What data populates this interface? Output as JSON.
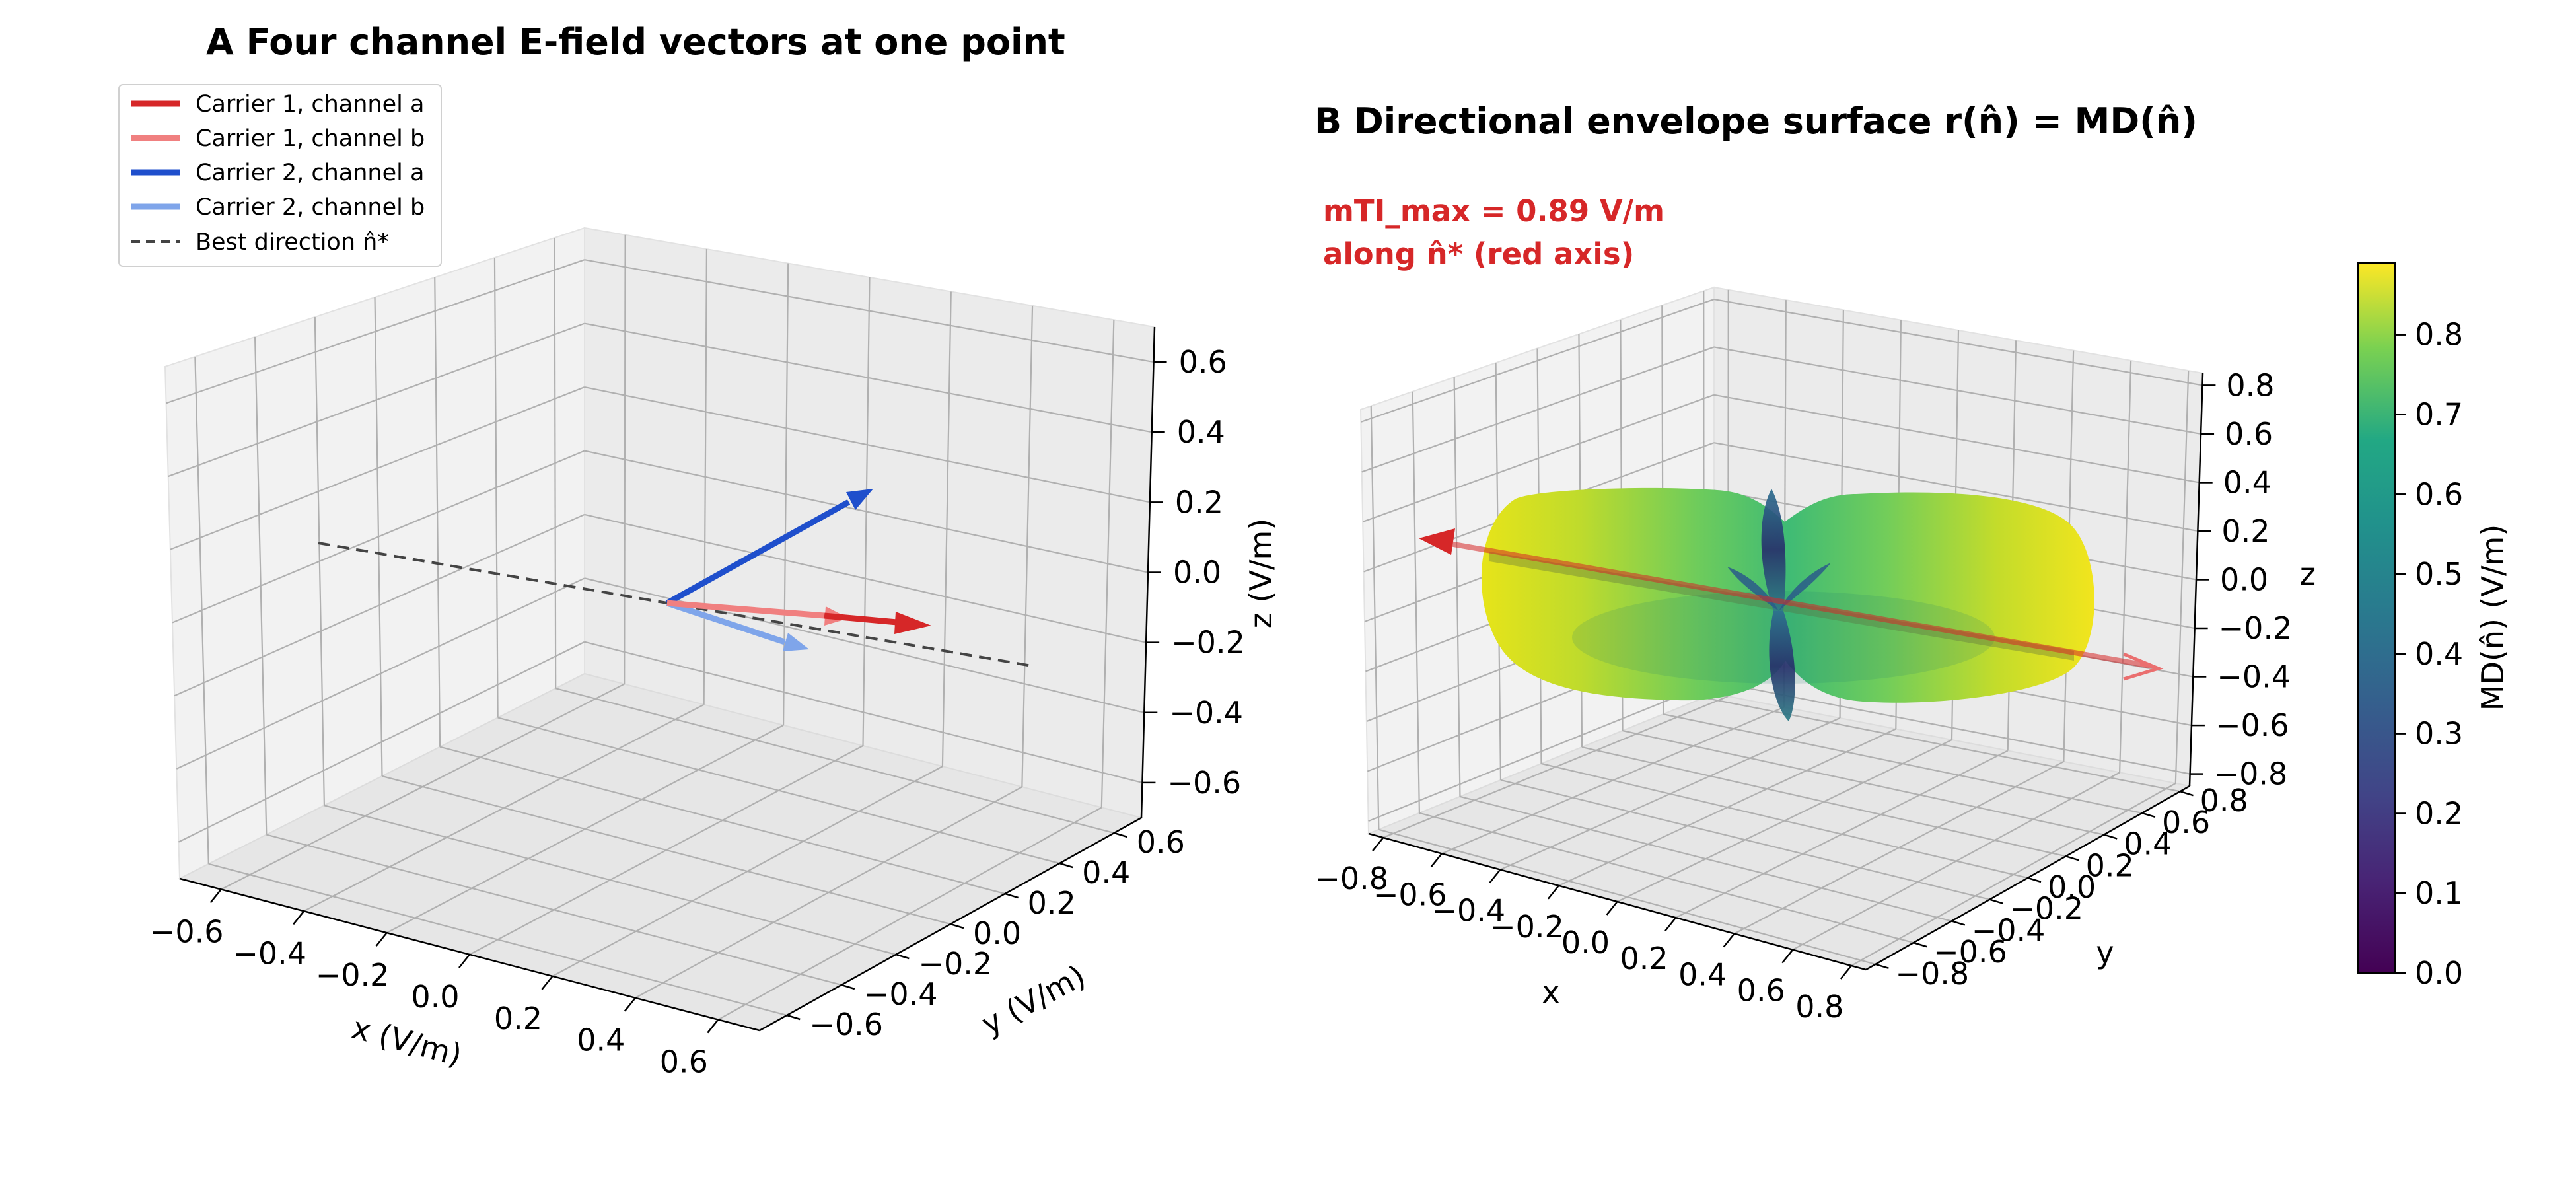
{
  "chart_data": [
    {
      "type": "3d-vector",
      "title": "A  Four channel E-field vectors at one point",
      "xlabel": "x (V/m)",
      "ylabel": "y (V/m)",
      "zlabel": "z (V/m)",
      "xlim": [
        -0.7,
        0.7
      ],
      "ylim": [
        -0.7,
        0.7
      ],
      "zlim": [
        -0.7,
        0.7
      ],
      "ticks": {
        "x": [
          "−0.6",
          "−0.4",
          "−0.2",
          "0.0",
          "0.2",
          "0.4",
          "0.6"
        ],
        "y": [
          "−0.6",
          "−0.4",
          "−0.2",
          "0.0",
          "0.2",
          "0.4",
          "0.6"
        ],
        "z": [
          "−0.6",
          "−0.4",
          "−0.2",
          "0.0",
          "0.2",
          "0.4",
          "0.6"
        ]
      },
      "grid": true,
      "legend_position": "top-left",
      "series": [
        {
          "name": "Carrier 1, channel a",
          "color": "#d62728",
          "vector": [
            0.48,
            0.3,
            -0.04
          ]
        },
        {
          "name": "Carrier 1, channel b",
          "color": "#f08080",
          "vector": [
            0.33,
            0.22,
            -0.02
          ]
        },
        {
          "name": "Carrier 2, channel a",
          "color": "#1f4fcc",
          "vector": [
            0.18,
            0.3,
            0.42
          ]
        },
        {
          "name": "Carrier 2, channel b",
          "color": "#7fa5ea",
          "vector": [
            0.3,
            -0.02,
            -0.1
          ]
        },
        {
          "name": "Best direction n̂*",
          "color": "#444444",
          "style": "dashed",
          "vector": [
            0.8,
            0.5,
            -0.06
          ]
        }
      ]
    },
    {
      "type": "3d-surface",
      "title": "B  Directional envelope surface r(n̂) = MD(n̂)",
      "annotation": [
        "mTI_max = 0.89 V/m",
        "along n̂* (red axis)"
      ],
      "xlabel": "x",
      "ylabel": "y",
      "zlabel": "z",
      "xlim": [
        -0.85,
        0.85
      ],
      "ylim": [
        -0.85,
        0.85
      ],
      "zlim": [
        -0.85,
        0.85
      ],
      "ticks": {
        "x": [
          "−0.8",
          "−0.6",
          "−0.4",
          "−0.2",
          "0.0",
          "0.2",
          "0.4",
          "0.6",
          "0.8"
        ],
        "y": [
          "−0.8",
          "−0.6",
          "−0.4",
          "−0.2",
          "0.0",
          "0.2",
          "0.4",
          "0.6",
          "0.8"
        ],
        "z": [
          "−0.8",
          "−0.6",
          "−0.4",
          "−0.2",
          "0.0",
          "0.2",
          "0.4",
          "0.6",
          "0.8"
        ]
      },
      "grid": true,
      "mTI_max": 0.89,
      "best_direction": [
        0.8,
        0.5,
        -0.06
      ],
      "colormap": "viridis",
      "colorbar": {
        "label": "MD(n̂) (V/m)",
        "range": [
          0,
          0.89
        ],
        "ticks": [
          "0.0",
          "0.1",
          "0.2",
          "0.3",
          "0.4",
          "0.5",
          "0.6",
          "0.7",
          "0.8"
        ]
      }
    }
  ]
}
